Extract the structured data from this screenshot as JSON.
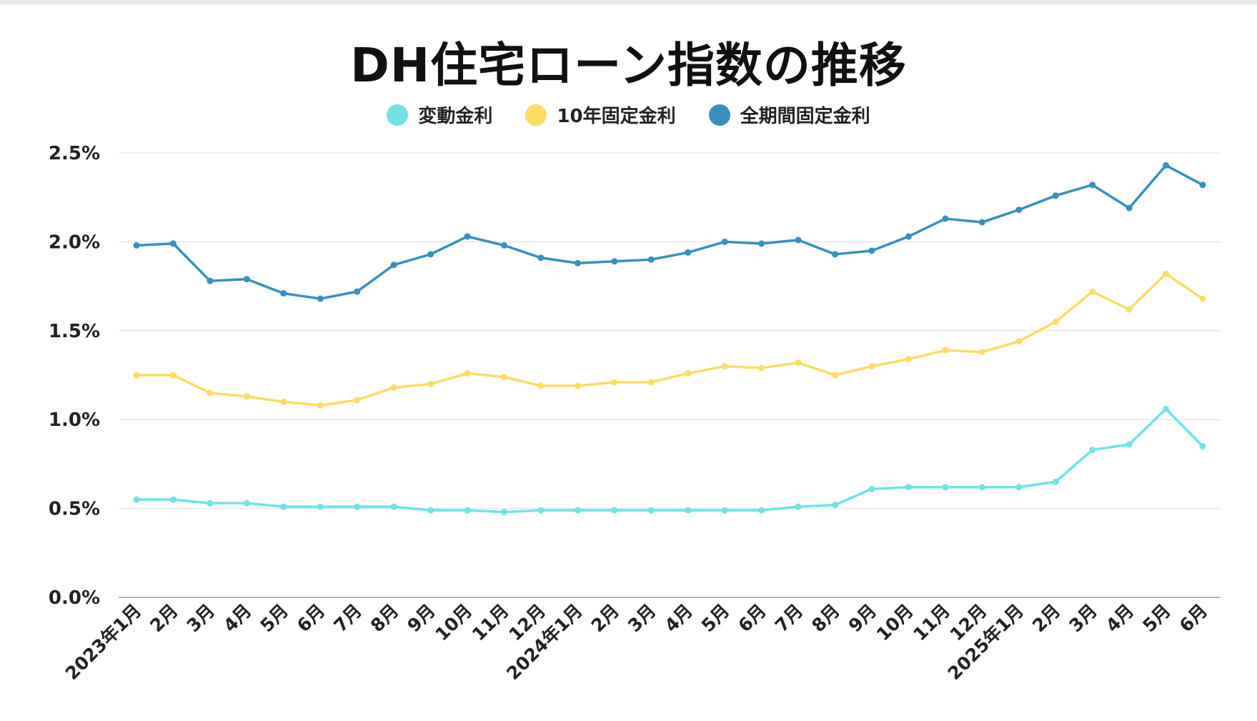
{
  "chart_data": {
    "type": "line",
    "title": "DH住宅ローン指数の推移",
    "x": [
      "2023年1月",
      "2月",
      "3月",
      "4月",
      "5月",
      "6月",
      "7月",
      "8月",
      "9月",
      "10月",
      "11月",
      "12月",
      "2024年1月",
      "2月",
      "3月",
      "4月",
      "5月",
      "6月",
      "7月",
      "8月",
      "9月",
      "10月",
      "11月",
      "12月",
      "2025年1月",
      "2月",
      "3月",
      "4月",
      "5月",
      "6月"
    ],
    "yticks": [
      "0.0%",
      "0.5%",
      "1.0%",
      "1.5%",
      "2.0%",
      "2.5%"
    ],
    "ylim": [
      0,
      2.5
    ],
    "grid": true,
    "legend_position": "top-center",
    "series": [
      {
        "name": "変動金利",
        "color": "#6fe3e6",
        "values": [
          0.55,
          0.55,
          0.53,
          0.53,
          0.51,
          0.51,
          0.51,
          0.51,
          0.49,
          0.49,
          0.48,
          0.49,
          0.49,
          0.49,
          0.49,
          0.49,
          0.49,
          0.49,
          0.51,
          0.52,
          0.61,
          0.62,
          0.62,
          0.62,
          0.62,
          0.65,
          0.83,
          0.86,
          1.06,
          0.85
        ]
      },
      {
        "name": "10年固定金利",
        "color": "#fcdc62",
        "values": [
          1.25,
          1.25,
          1.15,
          1.13,
          1.1,
          1.08,
          1.11,
          1.18,
          1.2,
          1.26,
          1.24,
          1.19,
          1.19,
          1.21,
          1.21,
          1.26,
          1.3,
          1.29,
          1.32,
          1.25,
          1.3,
          1.34,
          1.39,
          1.38,
          1.44,
          1.55,
          1.72,
          1.62,
          1.82,
          1.68
        ]
      },
      {
        "name": "全期間固定金利",
        "color": "#3590bf",
        "values": [
          1.98,
          1.99,
          1.78,
          1.79,
          1.71,
          1.68,
          1.72,
          1.87,
          1.93,
          2.03,
          1.98,
          1.91,
          1.88,
          1.89,
          1.9,
          1.94,
          2.0,
          1.99,
          2.01,
          1.93,
          1.95,
          2.03,
          2.13,
          2.11,
          2.18,
          2.26,
          2.32,
          2.19,
          2.43,
          2.32
        ]
      }
    ]
  }
}
